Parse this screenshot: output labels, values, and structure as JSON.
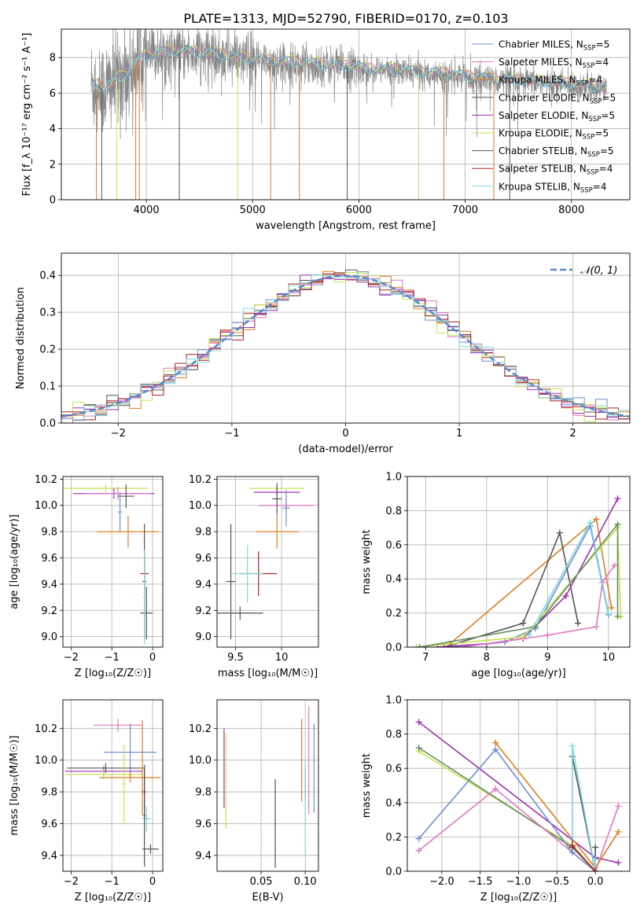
{
  "figure_title": "PLATE=1313, MJD=52790, FIBERID=0170, z=0.103",
  "legend_entries": [
    {
      "label": "Chabrier MILES, N",
      "sub": "SSP",
      "suffix": "=5",
      "color": "#6f8fd0"
    },
    {
      "label": "Salpeter MILES, N",
      "sub": "SSP",
      "suffix": "=4",
      "color": "#e377c2"
    },
    {
      "label": "Kroupa MILES, N",
      "sub": "SSP",
      "suffix": "=4",
      "color": "#e07d1f"
    },
    {
      "label": "Chabrier ELODIE, N",
      "sub": "SSP",
      "suffix": "=5",
      "color": "#555555"
    },
    {
      "label": "Salpeter ELODIE, N",
      "sub": "SSP",
      "suffix": "=5",
      "color": "#9b30b0"
    },
    {
      "label": "Kroupa ELODIE, N",
      "sub": "SSP",
      "suffix": "=5",
      "color": "#c8e050"
    },
    {
      "label": "Chabrier STELIB, N",
      "sub": "SSP",
      "suffix": "=5",
      "color": "#555555"
    },
    {
      "label": "Salpeter STELIB, N",
      "sub": "SSP",
      "suffix": "=4",
      "color": "#b22222"
    },
    {
      "label": "Kroupa STELIB, N",
      "sub": "SSP",
      "suffix": "=4",
      "color": "#7fd8e0"
    }
  ],
  "hist_legend": "𝒩(0, 1)",
  "chart_data": [
    {
      "type": "line",
      "id": "spectrum",
      "xlabel": "wavelength [Angstrom, rest frame]",
      "ylabel": "Flux [f_λ 10⁻¹⁷ erg cm⁻² s⁻¹ A⁻¹]",
      "xlim": [
        3200,
        8550
      ],
      "ylim": [
        0,
        9.6
      ],
      "xticks": [
        4000,
        5000,
        6000,
        7000,
        8000
      ],
      "yticks": [
        0,
        2,
        4,
        6,
        8
      ],
      "continuum": {
        "x": [
          3480,
          3600,
          3800,
          3950,
          4100,
          4300,
          4500,
          4700,
          4900,
          5100,
          5300,
          5500,
          5800,
          6100,
          6400,
          6700,
          7000,
          7300,
          7600,
          7900,
          8200,
          8330
        ],
        "y": [
          6.5,
          6.2,
          7.0,
          7.9,
          8.2,
          8.3,
          8.2,
          8.1,
          7.9,
          7.8,
          7.7,
          7.6,
          7.5,
          7.3,
          7.2,
          7.1,
          6.9,
          6.7,
          6.6,
          6.5,
          6.3,
          6.2
        ]
      },
      "absorption_lines": [
        3530,
        3580,
        3720,
        3900,
        3934,
        4310,
        4861,
        5170,
        5440,
        5890,
        6563,
        6800,
        7270,
        7420
      ]
    },
    {
      "type": "bar",
      "id": "residual_histogram",
      "xlabel": "(data-model)/error",
      "ylabel": "Normed distribution",
      "xlim": [
        -2.5,
        2.5
      ],
      "ylim": [
        0,
        0.46
      ],
      "xticks": [
        -2,
        -1,
        0,
        1,
        2
      ],
      "yticks": [
        0,
        0.1,
        0.2,
        0.3,
        0.4
      ],
      "bin_width": 0.1,
      "series": [
        {
          "name": "N(0,1)",
          "style": "dashed",
          "mu": 0,
          "sigma": 1
        }
      ]
    },
    {
      "type": "scatter",
      "id": "age_vs_Z",
      "xlabel": "Z [log₁₀(Z/Z☉)]",
      "ylabel": "age  [log₁₀(age/yr)]",
      "xlim": [
        -2.2,
        0.25
      ],
      "ylim": [
        8.92,
        10.22
      ],
      "xticks": [
        -2,
        -1,
        0
      ],
      "yticks": [
        9.0,
        9.2,
        9.4,
        9.6,
        9.8,
        10.0,
        10.2
      ],
      "points": [
        {
          "x": -1.15,
          "y": 10.13,
          "xerr": 1.05,
          "yerr": 0.03,
          "color": "#c8e050"
        },
        {
          "x": -0.95,
          "y": 10.09,
          "xerr": 1.0,
          "yerr": 0.04,
          "color": "#9b30b0"
        },
        {
          "x": -0.85,
          "y": 10.09,
          "xerr": 0.8,
          "yerr": 0.05,
          "color": "#e377c2"
        },
        {
          "x": -0.65,
          "y": 10.07,
          "xerr": 0.2,
          "yerr": 0.09,
          "color": "#555555"
        },
        {
          "x": -0.8,
          "y": 9.95,
          "xerr": 0.05,
          "yerr": 0.15,
          "color": "#6f8fd0"
        },
        {
          "x": -0.6,
          "y": 9.8,
          "xerr": 0.75,
          "yerr": 0.12,
          "color": "#e07d1f"
        },
        {
          "x": -0.2,
          "y": 9.48,
          "xerr": 0.1,
          "yerr": 0.15,
          "color": "#b22222"
        },
        {
          "x": -0.2,
          "y": 9.42,
          "xerr": 0.05,
          "yerr": 0.44,
          "color": "#555555"
        },
        {
          "x": -0.15,
          "y": 9.18,
          "xerr": 0.15,
          "yerr": 0.2,
          "color": "#555555"
        },
        {
          "x": -0.2,
          "y": 9.3,
          "xerr": 0.03,
          "yerr": 0.36,
          "color": "#7fd8e0"
        }
      ]
    },
    {
      "type": "scatter",
      "id": "age_vs_mass",
      "xlabel": "mass [log₁₀(M/M☉)]",
      "ylabel": "",
      "xlim": [
        9.3,
        10.4
      ],
      "ylim": [
        8.92,
        10.22
      ],
      "xticks": [
        9.5,
        10.0
      ],
      "yticks": [
        9.0,
        9.2,
        9.4,
        9.6,
        9.8,
        10.0,
        10.2
      ],
      "points": [
        {
          "x": 9.95,
          "y": 10.13,
          "xerr": 0.3,
          "yerr": 0.02,
          "color": "#c8e050"
        },
        {
          "x": 9.95,
          "y": 10.1,
          "xerr": 0.25,
          "yerr": 0.03,
          "color": "#9b30b0"
        },
        {
          "x": 10.05,
          "y": 10.0,
          "xerr": 0.3,
          "yerr": 0.05,
          "color": "#e377c2"
        },
        {
          "x": 9.95,
          "y": 10.05,
          "xerr": 0.05,
          "yerr": 0.12,
          "color": "#555555"
        },
        {
          "x": 10.05,
          "y": 9.98,
          "xerr": 0.04,
          "yerr": 0.14,
          "color": "#6f8fd0"
        },
        {
          "x": 9.95,
          "y": 9.8,
          "xerr": 0.23,
          "yerr": 0.13,
          "color": "#e07d1f"
        },
        {
          "x": 9.75,
          "y": 9.48,
          "xerr": 0.2,
          "yerr": 0.17,
          "color": "#b22222"
        },
        {
          "x": 9.63,
          "y": 9.48,
          "xerr": 0.17,
          "yerr": 0.22,
          "color": "#7fd8e0"
        },
        {
          "x": 9.45,
          "y": 9.42,
          "xerr": 0.05,
          "yerr": 0.44,
          "color": "#555555"
        },
        {
          "x": 9.55,
          "y": 9.18,
          "xerr": 0.25,
          "yerr": 0.05,
          "color": "#555555"
        }
      ]
    },
    {
      "type": "line",
      "id": "massweight_vs_age",
      "xlabel": "age  [log₁₀(age/yr)]",
      "ylabel": "mass weight",
      "xlim": [
        6.7,
        10.35
      ],
      "ylim": [
        0,
        1.0
      ],
      "xticks": [
        7,
        8,
        9,
        10
      ],
      "yticks": [
        0.0,
        0.2,
        0.4,
        0.6,
        0.8,
        1.0
      ],
      "series": [
        {
          "color": "#e07d1f",
          "x": [
            6.85,
            7.4,
            9.8,
            10.05
          ],
          "y": [
            0.0,
            0.02,
            0.75,
            0.23
          ]
        },
        {
          "color": "#6f8fd0",
          "x": [
            7.5,
            8.3,
            8.8,
            9.7,
            10.0
          ],
          "y": [
            0.0,
            0.03,
            0.11,
            0.71,
            0.19
          ]
        },
        {
          "color": "#555555",
          "x": [
            7.3,
            8.6,
            9.2,
            9.5
          ],
          "y": [
            0.0,
            0.14,
            0.67,
            0.14
          ]
        },
        {
          "color": "#9b30b0",
          "x": [
            7.2,
            8.0,
            8.6,
            9.3,
            10.15
          ],
          "y": [
            0.0,
            0.02,
            0.05,
            0.3,
            0.87
          ]
        },
        {
          "color": "#e377c2",
          "x": [
            7.6,
            9.0,
            9.8,
            9.9,
            10.1
          ],
          "y": [
            0.0,
            0.07,
            0.12,
            0.38,
            0.48
          ]
        },
        {
          "color": "#c8e050",
          "x": [
            6.85,
            8.0,
            8.6,
            10.15,
            10.2
          ],
          "y": [
            0.0,
            0.04,
            0.06,
            0.7,
            0.18
          ]
        },
        {
          "color": "#5f8f5f",
          "x": [
            6.9,
            8.8,
            10.15,
            10.15
          ],
          "y": [
            0.0,
            0.12,
            0.72,
            0.18
          ]
        },
        {
          "color": "#7fd8e0",
          "x": [
            8.7,
            9.7,
            10.0
          ],
          "y": [
            0.07,
            0.73,
            0.2
          ]
        }
      ]
    },
    {
      "type": "scatter",
      "id": "mass_vs_Z",
      "xlabel": "Z [log₁₀(Z/Z☉)]",
      "ylabel": "mass [log₁₀(M/M☉)]",
      "xlim": [
        -2.2,
        0.25
      ],
      "ylim": [
        9.3,
        10.38
      ],
      "xticks": [
        -2,
        -1,
        0
      ],
      "yticks": [
        9.4,
        9.6,
        9.8,
        10.0,
        10.2
      ],
      "points": [
        {
          "x": -0.85,
          "y": 10.22,
          "xerr": 0.6,
          "yerr": 0.04,
          "color": "#e377c2"
        },
        {
          "x": -0.55,
          "y": 10.05,
          "xerr": 0.65,
          "yerr": 0.18,
          "color": "#6f8fd0"
        },
        {
          "x": -1.15,
          "y": 9.95,
          "xerr": 0.95,
          "yerr": 0.03,
          "color": "#555555"
        },
        {
          "x": -1.2,
          "y": 9.93,
          "xerr": 0.95,
          "yerr": 0.03,
          "color": "#9b30b0"
        },
        {
          "x": -1.2,
          "y": 9.91,
          "xerr": 0.95,
          "yerr": 0.03,
          "color": "#c8e050"
        },
        {
          "x": -0.55,
          "y": 9.89,
          "xerr": 0.75,
          "yerr": 0.03,
          "color": "#e07d1f"
        },
        {
          "x": -0.7,
          "y": 9.85,
          "xerr": 0.05,
          "yerr": 0.25,
          "color": "#c8e050"
        },
        {
          "x": -0.25,
          "y": 9.95,
          "xerr": 0.05,
          "yerr": 0.3,
          "color": "#e07d1f"
        },
        {
          "x": -0.2,
          "y": 9.8,
          "xerr": 0.05,
          "yerr": 0.15,
          "color": "#b22222"
        },
        {
          "x": -0.15,
          "y": 9.63,
          "xerr": 0.1,
          "yerr": 0.08,
          "color": "#7fd8e0"
        },
        {
          "x": -0.2,
          "y": 9.65,
          "xerr": 0.03,
          "yerr": 0.32,
          "color": "#555555"
        },
        {
          "x": -0.05,
          "y": 9.44,
          "xerr": 0.2,
          "yerr": 0.03,
          "color": "#555555"
        }
      ]
    },
    {
      "type": "scatter",
      "id": "mass_vs_ebv",
      "xlabel": "E(B-V)",
      "ylabel": "",
      "xlim": [
        0.0,
        0.115
      ],
      "ylim": [
        9.3,
        10.38
      ],
      "xticks": [
        0.05,
        0.1
      ],
      "yticks": [
        9.4,
        9.6,
        9.8,
        10.0,
        10.2
      ],
      "points": [
        {
          "x": 0.008,
          "y": 9.95,
          "yerr": 0.25,
          "color": "#9b30b0"
        },
        {
          "x": 0.01,
          "y": 9.87,
          "yerr": 0.3,
          "color": "#c8e050"
        },
        {
          "x": 0.066,
          "y": 9.6,
          "yerr": 0.28,
          "color": "#555555"
        },
        {
          "x": 0.096,
          "y": 10.0,
          "yerr": 0.26,
          "color": "#e07d1f"
        },
        {
          "x": 0.1,
          "y": 9.85,
          "yerr": 0.1,
          "color": "#b22222"
        },
        {
          "x": 0.1,
          "y": 9.7,
          "yerr": 0.3,
          "color": "#7fd8e0"
        },
        {
          "x": 0.104,
          "y": 10.0,
          "yerr": 0.34,
          "color": "#e377c2"
        },
        {
          "x": 0.11,
          "y": 9.95,
          "yerr": 0.28,
          "color": "#6f8fd0"
        }
      ]
    },
    {
      "type": "line",
      "id": "massweight_vs_Z",
      "xlabel": "Z [log₁₀(Z/Z☉)]",
      "ylabel": "mass weight",
      "xlim": [
        -2.45,
        0.45
      ],
      "ylim": [
        0,
        1.0
      ],
      "xticks": [
        -2.0,
        -1.5,
        -1.0,
        -0.5,
        0.0
      ],
      "yticks": [
        0.0,
        0.2,
        0.4,
        0.6,
        0.8,
        1.0
      ],
      "series": [
        {
          "color": "#9b30b0",
          "x": [
            -2.3,
            0.0,
            0.3
          ],
          "y": [
            0.87,
            0.08,
            0.05
          ]
        },
        {
          "color": "#c8e050",
          "x": [
            -2.3,
            -0.3,
            0.0
          ],
          "y": [
            0.7,
            0.15,
            0.0
          ]
        },
        {
          "color": "#5f8f5f",
          "x": [
            -2.3,
            -0.3,
            0.0
          ],
          "y": [
            0.72,
            0.14,
            0.0
          ]
        },
        {
          "color": "#e377c2",
          "x": [
            -2.3,
            -1.3,
            0.0,
            0.3
          ],
          "y": [
            0.12,
            0.48,
            0.0,
            0.38
          ]
        },
        {
          "color": "#6f8fd0",
          "x": [
            -2.3,
            -1.3,
            -0.3,
            0.0
          ],
          "y": [
            0.19,
            0.71,
            0.11,
            0.0
          ]
        },
        {
          "color": "#e07d1f",
          "x": [
            -1.3,
            0.0,
            0.3
          ],
          "y": [
            0.75,
            0.02,
            0.23
          ]
        },
        {
          "color": "#555555",
          "x": [
            -0.3,
            -0.3,
            0.0,
            0.0
          ],
          "y": [
            0.14,
            0.67,
            0.0,
            0.14
          ]
        },
        {
          "color": "#7fd8e0",
          "x": [
            -0.3,
            -0.3,
            0.0,
            0.0
          ],
          "y": [
            0.2,
            0.73,
            0.0,
            0.07
          ]
        },
        {
          "color": "#b22222",
          "x": [
            -0.3,
            0.0
          ],
          "y": [
            0.15,
            0.0
          ]
        }
      ]
    }
  ]
}
